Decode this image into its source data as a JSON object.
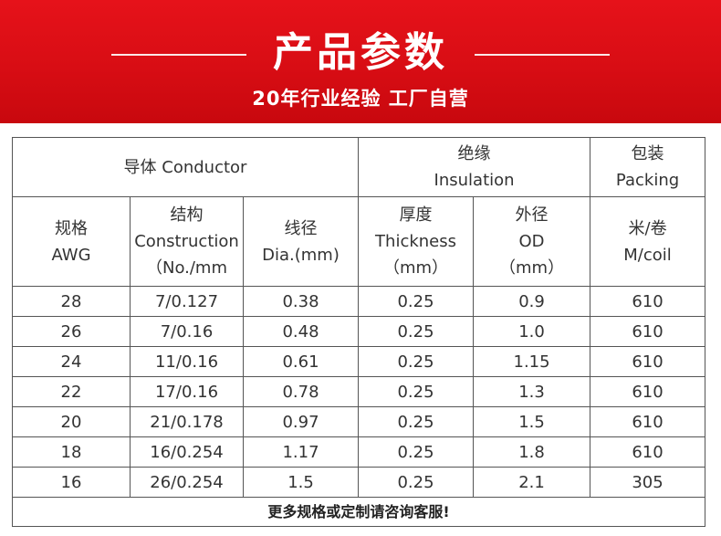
{
  "banner": {
    "title": "产品参数",
    "subtitle": "20年行业经验 工厂自营"
  },
  "table": {
    "group_headers": {
      "conductor": "导体 Conductor",
      "insulation_cn": "绝缘",
      "insulation_en": "Insulation",
      "packing_cn": "包装",
      "packing_en": "Packing"
    },
    "column_headers": {
      "awg_cn": "规格",
      "awg_en": "AWG",
      "construction_cn": "结构",
      "construction_en": "Construction",
      "construction_unit": "（No./mm",
      "dia_cn": "线径",
      "dia_en": "Dia.(mm)",
      "thickness_cn": "厚度",
      "thickness_en": "Thickness",
      "thickness_unit": "（mm）",
      "od_cn": "外径",
      "od_en": "OD",
      "od_unit": "（mm）",
      "packing_cn": "米/卷",
      "packing_en": "M/coil"
    },
    "rows": [
      [
        "28",
        "7/0.127",
        "0.38",
        "0.25",
        "0.9",
        "610"
      ],
      [
        "26",
        "7/0.16",
        "0.48",
        "0.25",
        "1.0",
        "610"
      ],
      [
        "24",
        "11/0.16",
        "0.61",
        "0.25",
        "1.15",
        "610"
      ],
      [
        "22",
        "17/0.16",
        "0.78",
        "0.25",
        "1.3",
        "610"
      ],
      [
        "20",
        "21/0.178",
        "0.97",
        "0.25",
        "1.5",
        "610"
      ],
      [
        "18",
        "16/0.254",
        "1.17",
        "0.25",
        "1.8",
        "610"
      ],
      [
        "16",
        "26/0.254",
        "1.5",
        "0.25",
        "2.1",
        "305"
      ]
    ],
    "footer": "更多规格或定制请咨询客服!"
  }
}
